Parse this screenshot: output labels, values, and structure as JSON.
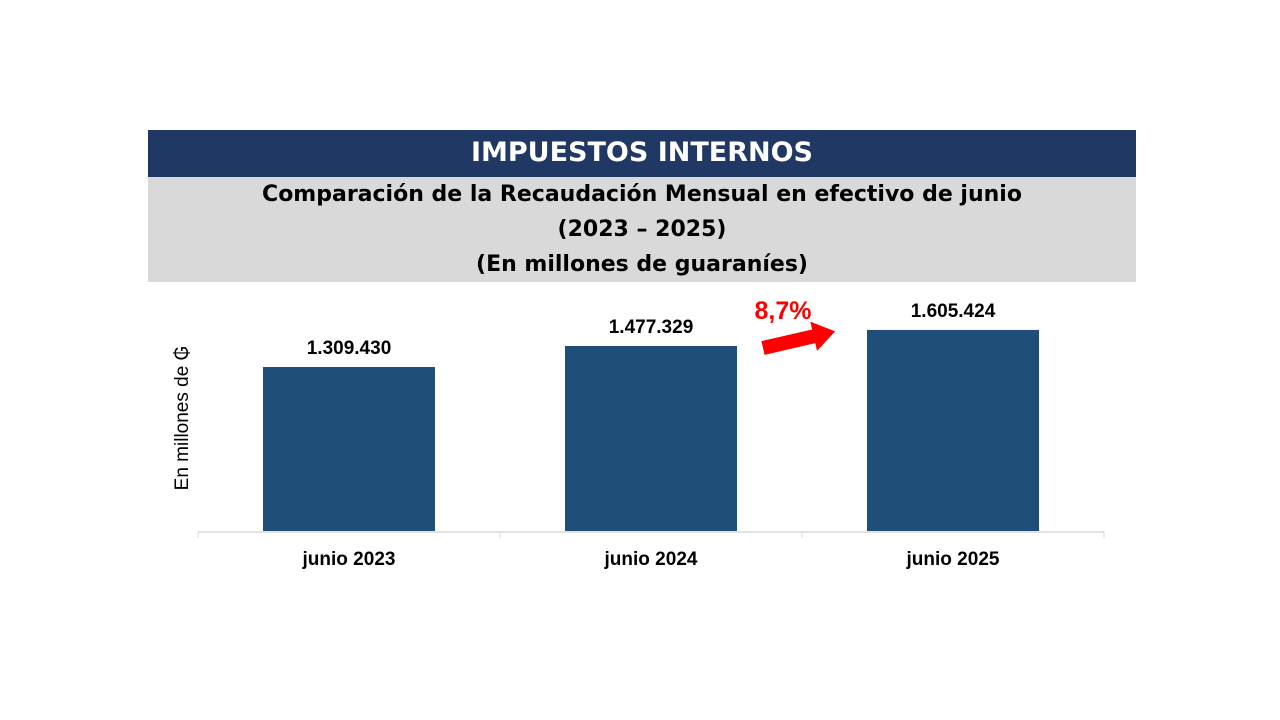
{
  "header": {
    "title": "IMPUESTOS INTERNOS"
  },
  "subtitle": {
    "line1": "Comparación de la Recaudación Mensual en efectivo de junio",
    "line2": "(2023 – 2025)",
    "line3": "(En millones de guaraníes)"
  },
  "chart_data": {
    "type": "bar",
    "categories": [
      "junio 2023",
      "junio 2024",
      "junio 2025"
    ],
    "values": [
      1309430,
      1477329,
      1605424
    ],
    "value_labels": [
      "1.309.430",
      "1.477.329",
      "1.605.424"
    ],
    "ylabel": "En millones de ₲",
    "xlabel": "",
    "ylim": [
      0,
      1650000
    ],
    "grid": false,
    "bar_color": "#1f4e79",
    "annotation": {
      "text": "8,7%",
      "color": "#ff0000"
    }
  }
}
